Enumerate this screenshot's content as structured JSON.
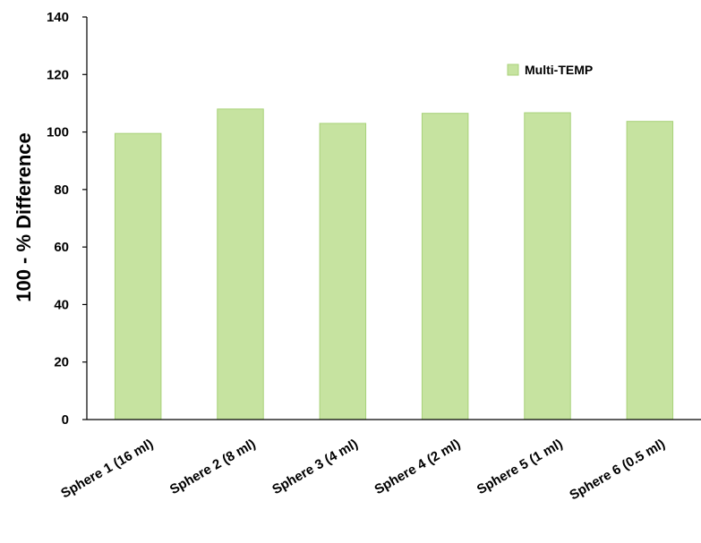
{
  "chart_data": {
    "type": "bar",
    "categories": [
      "Sphere 1 (16 ml)",
      "Sphere 2 (8 ml)",
      "Sphere 3 (4 ml)",
      "Sphere 4 (2 ml)",
      "Sphere 5 (1 ml)",
      "Sphere 6 (0.5 ml)"
    ],
    "series": [
      {
        "name": "Multi-TEMP",
        "values": [
          99.5,
          108,
          103,
          106.5,
          106.7,
          103.7
        ]
      }
    ],
    "ylabel": "100 - % Difference",
    "ylim": [
      0,
      140
    ],
    "yticks": [
      0,
      20,
      40,
      60,
      80,
      100,
      120,
      140
    ],
    "grid": false,
    "legend_position": "top-right",
    "colors": {
      "bar_fill": "#c6e3a0",
      "bar_stroke": "#a9d27a",
      "axis": "#000000"
    }
  }
}
